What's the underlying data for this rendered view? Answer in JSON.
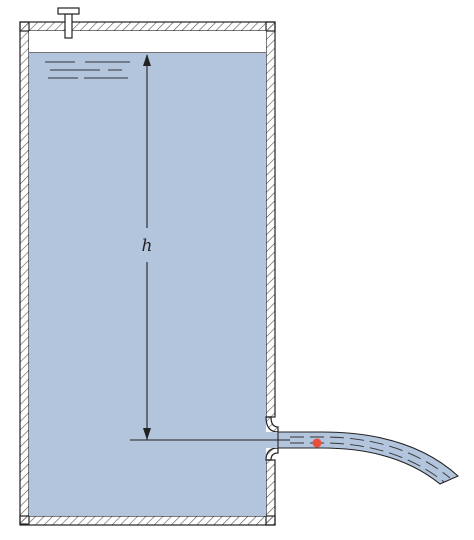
{
  "figure": {
    "height_label": "h",
    "colors": {
      "water": "#b3c4dd",
      "wall_line": "#222222",
      "hatch": "#555555",
      "marker": "#e8503c"
    }
  }
}
